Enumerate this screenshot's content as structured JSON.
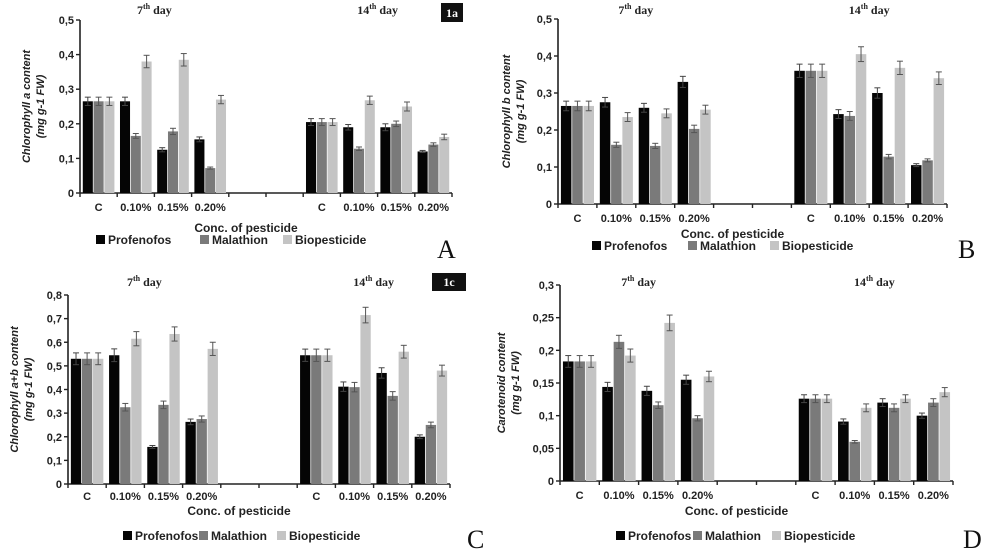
{
  "series_colors": {
    "Profenofos": "#050505",
    "Malathion": "#7a7a7a",
    "Biopesticide": "#c4c4c4"
  },
  "chart_data": [
    {
      "id": "A",
      "type": "bar",
      "panel_letter": "A",
      "tag": "1a",
      "ylabel_line1": "Chlorophyll a content",
      "ylabel_line2": "(mg g-1 FW)",
      "xlabel": "Conc. of pesticide",
      "ylim": [
        0,
        0.5
      ],
      "yticks": [
        "0",
        "0,1",
        "0,2",
        "0,3",
        "0,4",
        "0,5"
      ],
      "groups": [
        {
          "title_base": "7",
          "title_sup": "th",
          "title_rest": " day",
          "categories": [
            "C",
            "0.10%",
            "0.15%",
            "0.20%"
          ],
          "series": [
            {
              "name": "Profenofos",
              "values": [
                0.265,
                0.265,
                0.125,
                0.155
              ],
              "errors": [
                0.012,
                0.012,
                0.006,
                0.007
              ]
            },
            {
              "name": "Malathion",
              "values": [
                0.265,
                0.165,
                0.178,
                0.072
              ],
              "errors": [
                0.012,
                0.007,
                0.009,
                0.003
              ]
            },
            {
              "name": "Biopesticide",
              "values": [
                0.265,
                0.38,
                0.385,
                0.27
              ],
              "errors": [
                0.012,
                0.018,
                0.018,
                0.012
              ]
            }
          ]
        },
        {
          "title_base": "14",
          "title_sup": "th",
          "title_rest": " day",
          "categories": [
            "C",
            "0.10%",
            "0.15%",
            "0.20%"
          ],
          "series": [
            {
              "name": "Profenofos",
              "values": [
                0.205,
                0.19,
                0.19,
                0.12
              ],
              "errors": [
                0.01,
                0.008,
                0.01,
                0.003
              ]
            },
            {
              "name": "Malathion",
              "values": [
                0.205,
                0.128,
                0.2,
                0.14
              ],
              "errors": [
                0.01,
                0.005,
                0.008,
                0.005
              ]
            },
            {
              "name": "Biopesticide",
              "values": [
                0.205,
                0.268,
                0.25,
                0.162
              ],
              "errors": [
                0.01,
                0.012,
                0.013,
                0.008
              ]
            }
          ]
        }
      ],
      "legend": [
        "Profenofos",
        "Malathion",
        "Biopesticide"
      ]
    },
    {
      "id": "B",
      "type": "bar",
      "panel_letter": "B",
      "tag": "",
      "ylabel_line1": "Chlorophyll b content",
      "ylabel_line2": "(mg g-1 FW)",
      "xlabel": "Conc. of pesticide",
      "ylim": [
        0,
        0.5
      ],
      "yticks": [
        "0",
        "0,1",
        "0,2",
        "0,3",
        "0,4",
        "0,5"
      ],
      "groups": [
        {
          "title_base": "7",
          "title_sup": "th",
          "title_rest": " day",
          "categories": [
            "C",
            "0.10%",
            "0.15%",
            "0.20%"
          ],
          "series": [
            {
              "name": "Profenofos",
              "values": [
                0.265,
                0.275,
                0.26,
                0.33
              ],
              "errors": [
                0.013,
                0.013,
                0.012,
                0.015
              ]
            },
            {
              "name": "Malathion",
              "values": [
                0.265,
                0.16,
                0.157,
                0.203
              ],
              "errors": [
                0.013,
                0.007,
                0.007,
                0.01
              ]
            },
            {
              "name": "Biopesticide",
              "values": [
                0.265,
                0.235,
                0.245,
                0.255
              ],
              "errors": [
                0.013,
                0.012,
                0.012,
                0.012
              ]
            }
          ]
        },
        {
          "title_base": "14",
          "title_sup": "th",
          "title_rest": " day",
          "categories": [
            "C",
            "0.10%",
            "0.15%",
            "0.20%"
          ],
          "series": [
            {
              "name": "Profenofos",
              "values": [
                0.36,
                0.243,
                0.3,
                0.105
              ],
              "errors": [
                0.018,
                0.012,
                0.014,
                0.004
              ]
            },
            {
              "name": "Malathion",
              "values": [
                0.36,
                0.238,
                0.128,
                0.118
              ],
              "errors": [
                0.018,
                0.012,
                0.006,
                0.004
              ]
            },
            {
              "name": "Biopesticide",
              "values": [
                0.36,
                0.405,
                0.368,
                0.34
              ],
              "errors": [
                0.018,
                0.02,
                0.018,
                0.017
              ]
            }
          ]
        }
      ],
      "legend": [
        "Profenofos",
        "Malathion",
        "Biopesticide"
      ]
    },
    {
      "id": "C",
      "type": "bar",
      "panel_letter": "C",
      "tag": "1c",
      "ylabel_line1": "Chlorophyll a+b content",
      "ylabel_line2": "(mg g-1 FW)",
      "xlabel": "Conc. of pesticide",
      "ylim": [
        0,
        0.8
      ],
      "yticks": [
        "0",
        "0,1",
        "0,2",
        "0,3",
        "0,4",
        "0,5",
        "0,6",
        "0,7",
        "0,8"
      ],
      "groups": [
        {
          "title_base": "7",
          "title_sup": "th",
          "title_rest": " day",
          "categories": [
            "C",
            "0.10%",
            "0.15%",
            "0.20%"
          ],
          "series": [
            {
              "name": "Profenofos",
              "values": [
                0.53,
                0.545,
                0.157,
                0.263
              ],
              "errors": [
                0.025,
                0.027,
                0.006,
                0.012
              ]
            },
            {
              "name": "Malathion",
              "values": [
                0.53,
                0.325,
                0.335,
                0.275
              ],
              "errors": [
                0.025,
                0.016,
                0.016,
                0.013
              ]
            },
            {
              "name": "Biopesticide",
              "values": [
                0.53,
                0.615,
                0.635,
                0.572
              ],
              "errors": [
                0.025,
                0.03,
                0.03,
                0.028
              ]
            }
          ]
        },
        {
          "title_base": "14",
          "title_sup": "th",
          "title_rest": " day",
          "categories": [
            "C",
            "0.10%",
            "0.15%",
            "0.20%"
          ],
          "series": [
            {
              "name": "Profenofos",
              "values": [
                0.545,
                0.412,
                0.47,
                0.2
              ],
              "errors": [
                0.026,
                0.02,
                0.022,
                0.008
              ]
            },
            {
              "name": "Malathion",
              "values": [
                0.545,
                0.41,
                0.373,
                0.25
              ],
              "errors": [
                0.026,
                0.02,
                0.018,
                0.012
              ]
            },
            {
              "name": "Biopesticide",
              "values": [
                0.545,
                0.715,
                0.56,
                0.48
              ],
              "errors": [
                0.026,
                0.033,
                0.027,
                0.023
              ]
            }
          ]
        }
      ],
      "legend": [
        "Profenofos",
        "Malathion",
        "Biopesticide"
      ]
    },
    {
      "id": "D",
      "type": "bar",
      "panel_letter": "D",
      "tag": "",
      "ylabel_line1": "Carotenoid content",
      "ylabel_line2": "(mg g-1 FW)",
      "xlabel": "Conc. of pesticide",
      "ylim": [
        0,
        0.3
      ],
      "yticks": [
        "0",
        "0,05",
        "0,1",
        "0,15",
        "0,2",
        "0,25",
        "0,3"
      ],
      "groups": [
        {
          "title_base": "7",
          "title_sup": "th",
          "title_rest": " day",
          "categories": [
            "C",
            "0.10%",
            "0.15%",
            "0.20%"
          ],
          "series": [
            {
              "name": "Profenofos",
              "values": [
                0.183,
                0.144,
                0.138,
                0.155
              ],
              "errors": [
                0.009,
                0.007,
                0.007,
                0.007
              ]
            },
            {
              "name": "Malathion",
              "values": [
                0.183,
                0.213,
                0.116,
                0.096
              ],
              "errors": [
                0.009,
                0.01,
                0.005,
                0.004
              ]
            },
            {
              "name": "Biopesticide",
              "values": [
                0.183,
                0.192,
                0.242,
                0.16
              ],
              "errors": [
                0.009,
                0.01,
                0.012,
                0.008
              ]
            }
          ]
        },
        {
          "title_base": "14",
          "title_sup": "th",
          "title_rest": " day",
          "categories": [
            "C",
            "0.10%",
            "0.15%",
            "0.20%"
          ],
          "series": [
            {
              "name": "Profenofos",
              "values": [
                0.126,
                0.091,
                0.12,
                0.1
              ],
              "errors": [
                0.006,
                0.004,
                0.006,
                0.004
              ]
            },
            {
              "name": "Malathion",
              "values": [
                0.126,
                0.06,
                0.112,
                0.12
              ],
              "errors": [
                0.006,
                0.002,
                0.006,
                0.006
              ]
            },
            {
              "name": "Biopesticide",
              "values": [
                0.126,
                0.112,
                0.126,
                0.136
              ],
              "errors": [
                0.006,
                0.006,
                0.006,
                0.007
              ]
            }
          ]
        }
      ],
      "legend": [
        "Profenofos",
        "Malathion",
        "Biopesticide"
      ]
    }
  ]
}
